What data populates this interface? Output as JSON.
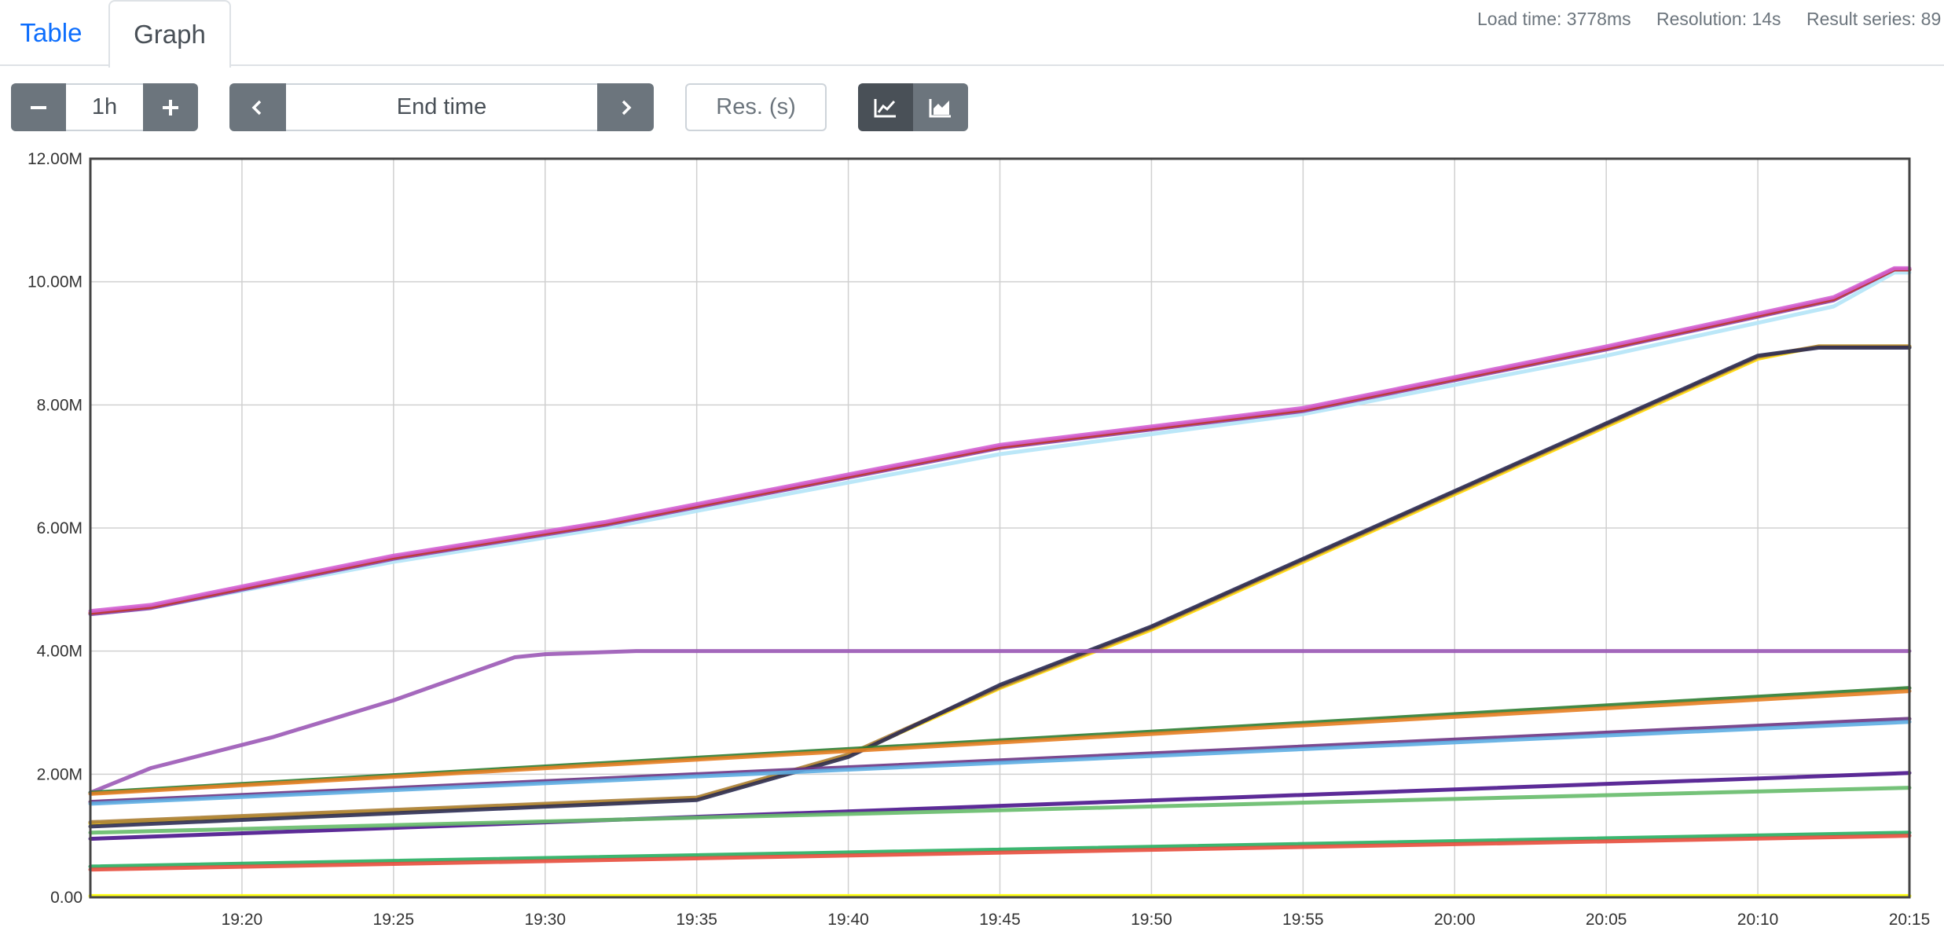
{
  "tabs": [
    {
      "label": "Table",
      "active": false
    },
    {
      "label": "Graph",
      "active": true
    }
  ],
  "stats": {
    "load_time": "Load time: 3778ms",
    "resolution": "Resolution: 14s",
    "result_series": "Result series: 89"
  },
  "controls": {
    "range_value": "1h",
    "end_time_placeholder": "End time",
    "resolution_placeholder": "Res. (s)",
    "icons": {
      "minus": "minus-icon",
      "plus": "plus-icon",
      "prev": "chevron-left-icon",
      "next": "chevron-right-icon",
      "line": "line-chart-icon",
      "stacked": "area-chart-icon"
    },
    "active_mode": "line"
  },
  "chart_data": {
    "type": "line",
    "x_ticks": [
      "19:20",
      "19:25",
      "19:30",
      "19:35",
      "19:40",
      "19:45",
      "19:50",
      "19:55",
      "20:00",
      "20:05",
      "20:10",
      "20:15"
    ],
    "y_ticks": [
      "0.00",
      "2.00M",
      "4.00M",
      "6.00M",
      "8.00M",
      "10.00M",
      "12.00M"
    ],
    "xlim": [
      "19:15",
      "20:15"
    ],
    "ylim": [
      0,
      12000000
    ],
    "grid": true,
    "series": [
      {
        "color": "#b4e4f7",
        "x": [
          0,
          2,
          10,
          17,
          30,
          40,
          50,
          57.5,
          59.5,
          60
        ],
        "y": [
          4.6,
          4.7,
          5.45,
          6.0,
          7.2,
          7.85,
          8.8,
          9.6,
          10.15,
          10.15
        ]
      },
      {
        "color": "#8e44ad",
        "x": [
          0,
          2,
          10,
          17,
          30,
          40,
          50,
          57.5,
          59.5,
          60
        ],
        "y": [
          4.6,
          4.7,
          5.5,
          6.05,
          7.3,
          7.9,
          8.9,
          9.7,
          10.2,
          10.2
        ]
      },
      {
        "color": "#c0392b",
        "x": [
          0,
          2,
          10,
          17,
          30,
          40,
          50,
          57.5,
          59.5,
          60
        ],
        "y": [
          4.62,
          4.72,
          5.52,
          6.07,
          7.32,
          7.92,
          8.92,
          9.72,
          10.2,
          10.2
        ]
      },
      {
        "color": "#d35fd3",
        "x": [
          0,
          2,
          10,
          17,
          30,
          40,
          50,
          57.5,
          59.5,
          60
        ],
        "y": [
          4.65,
          4.75,
          5.55,
          6.1,
          7.35,
          7.95,
          8.95,
          9.75,
          10.22,
          10.22
        ]
      },
      {
        "color": "#ffd700",
        "x": [
          0,
          20,
          25,
          30,
          35,
          40,
          45,
          50,
          55,
          57,
          60
        ],
        "y": [
          1.2,
          1.6,
          2.3,
          3.4,
          4.35,
          5.45,
          6.55,
          7.65,
          8.75,
          8.95,
          8.95
        ]
      },
      {
        "color": "#ab7f3a",
        "x": [
          0,
          20,
          25,
          30,
          35,
          40,
          45,
          50,
          55,
          57,
          60
        ],
        "y": [
          1.22,
          1.62,
          2.32,
          3.42,
          4.38,
          5.48,
          6.58,
          7.68,
          8.78,
          8.95,
          8.95
        ]
      },
      {
        "color": "#2c2c54",
        "x": [
          0,
          20,
          25,
          30,
          35,
          40,
          45,
          50,
          55,
          57,
          60
        ],
        "y": [
          1.15,
          1.58,
          2.28,
          3.45,
          4.4,
          5.5,
          6.6,
          7.7,
          8.8,
          8.93,
          8.93
        ]
      },
      {
        "color": "#9b59b6",
        "x": [
          0,
          2,
          6,
          10,
          14,
          15,
          18,
          60
        ],
        "y": [
          1.7,
          2.1,
          2.6,
          3.2,
          3.9,
          3.95,
          4.0,
          4.0
        ]
      },
      {
        "color": "#2e7d32",
        "x": [
          0,
          60
        ],
        "y": [
          1.7,
          3.4
        ]
      },
      {
        "color": "#e67e22",
        "x": [
          0,
          60
        ],
        "y": [
          1.68,
          3.35
        ]
      },
      {
        "color": "#6c3483",
        "x": [
          0,
          60
        ],
        "y": [
          1.55,
          2.9
        ]
      },
      {
        "color": "#5dade2",
        "x": [
          0,
          60
        ],
        "y": [
          1.52,
          2.85
        ]
      },
      {
        "color": "#4a148c",
        "x": [
          0,
          60
        ],
        "y": [
          0.95,
          2.02
        ]
      },
      {
        "color": "#66bb6a",
        "x": [
          0,
          60
        ],
        "y": [
          1.05,
          1.78
        ]
      },
      {
        "color": "#27ae60",
        "x": [
          0,
          60
        ],
        "y": [
          0.5,
          1.05
        ]
      },
      {
        "color": "#e74c3c",
        "x": [
          0,
          60
        ],
        "y": [
          0.45,
          1.0
        ]
      },
      {
        "color": "#ffff00",
        "x": [
          0,
          60
        ],
        "y": [
          0.02,
          0.02
        ]
      }
    ]
  }
}
